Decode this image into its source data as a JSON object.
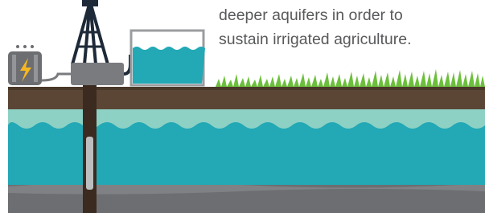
{
  "caption": {
    "lines": [
      "deeper aquifers in order to",
      "sustain irrigated agriculture."
    ]
  }
}
